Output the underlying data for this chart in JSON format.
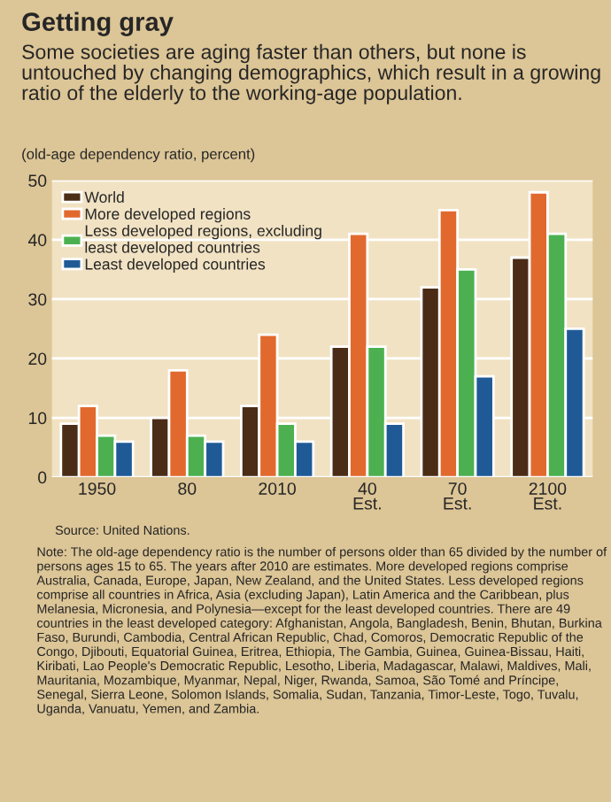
{
  "chart_data": {
    "type": "bar",
    "title": "Getting gray",
    "subtitle": "Some societies are aging faster than others, but none is untouched by changing demographics, which result in a growing ratio of the elderly to the working-age population.",
    "ylabel": "(old-age dependency ratio, percent)",
    "categories": [
      "1950",
      "80",
      "2010",
      "40\nEst.",
      "70\nEst.",
      "2100\nEst."
    ],
    "series": [
      {
        "name": "World",
        "color": "#4b2c16",
        "values": [
          9,
          10,
          12,
          22,
          32,
          37
        ]
      },
      {
        "name": "More developed regions",
        "color": "#e2692e",
        "values": [
          12,
          18,
          24,
          41,
          45,
          48
        ]
      },
      {
        "name": "Less developed regions, excluding\nleast developed countries",
        "color": "#4cb050",
        "values": [
          7,
          7,
          9,
          22,
          35,
          41
        ]
      },
      {
        "name": "Least developed countries",
        "color": "#1f5a96",
        "values": [
          6,
          6,
          6,
          9,
          17,
          25
        ]
      }
    ],
    "ylim": [
      0,
      50
    ],
    "yticks": [
      0,
      10,
      20,
      30,
      40,
      50
    ],
    "grid": "y",
    "legend": "top left",
    "annotations": [
      "Source: United Nations.",
      "Note: The old-age dependency ratio is the number of persons older than 65 divided by the number of persons ages 15 to 65. The years after 2010 are estimates. More developed regions comprise Australia, Canada, Europe, Japan, New Zealand, and the United States. Less developed regions comprise all countries in Africa, Asia (excluding Japan), Latin America and the Caribbean, plus Melanesia, Micronesia, and Polynesia—except for the least developed countries. There are 49 countries in the least developed category: Afghanistan, Angola, Bangladesh, Benin, Bhutan, Burkina Faso, Burundi, Cambodia, Central African Republic, Chad, Comoros, Democratic Republic of the Congo, Djibouti, Equatorial Guinea, Eritrea, Ethiopia, The Gambia, Guinea, Guinea-Bissau, Haiti, Kiribati, Lao People's Democratic Republic, Lesotho, Liberia, Madagascar, Malawi, Maldives, Mali, Mauritania, Mozambique, Myanmar, Nepal, Niger, Rwanda, Samoa, São Tomé and Príncipe, Senegal, Sierra Leone, Solomon Islands, Somalia, Sudan, Tanzania, Timor-Leste, Togo, Tuvalu, Uganda, Vanuatu, Yemen, and Zambia."
    ]
  }
}
